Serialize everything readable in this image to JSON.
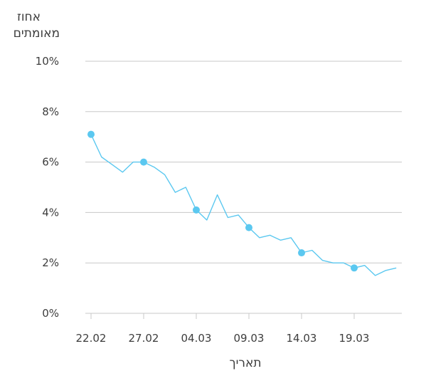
{
  "chart_data": {
    "type": "line",
    "ylabel": [
      "אחוז",
      "מאומתים"
    ],
    "xlabel": "תאריך",
    "ylim": [
      0,
      10
    ],
    "y_ticks": [
      "0%",
      "2%",
      "4%",
      "6%",
      "8%",
      "10%"
    ],
    "y_tick_values": [
      0,
      2,
      4,
      6,
      8,
      10
    ],
    "grid": true,
    "x_ticks": [
      {
        "date": "22.02",
        "day": 0
      },
      {
        "date": "27.02",
        "day": 5
      },
      {
        "date": "04.03",
        "day": 10
      },
      {
        "date": "09.03",
        "day": 15
      },
      {
        "date": "14.03",
        "day": 20
      },
      {
        "date": "19.03",
        "day": 25
      }
    ],
    "line_color": "#5bc8f0",
    "series": [
      {
        "x": [
          0,
          1,
          2,
          3,
          4,
          5,
          6,
          7,
          8,
          9,
          10,
          11,
          12,
          13,
          14,
          15,
          16,
          17,
          18,
          19,
          20,
          21,
          22,
          23,
          24,
          25,
          26,
          27,
          28,
          29
        ],
        "values": [
          7.1,
          6.2,
          5.9,
          5.6,
          6.0,
          6.0,
          5.8,
          5.5,
          4.8,
          5.0,
          4.1,
          3.7,
          4.7,
          3.8,
          3.9,
          3.4,
          3.0,
          3.1,
          2.9,
          3.0,
          2.4,
          2.5,
          2.1,
          2.0,
          2.0,
          1.8,
          1.9,
          1.5,
          1.7,
          1.8
        ]
      }
    ],
    "markers_x": [
      0,
      5,
      10,
      15,
      20,
      25
    ]
  }
}
